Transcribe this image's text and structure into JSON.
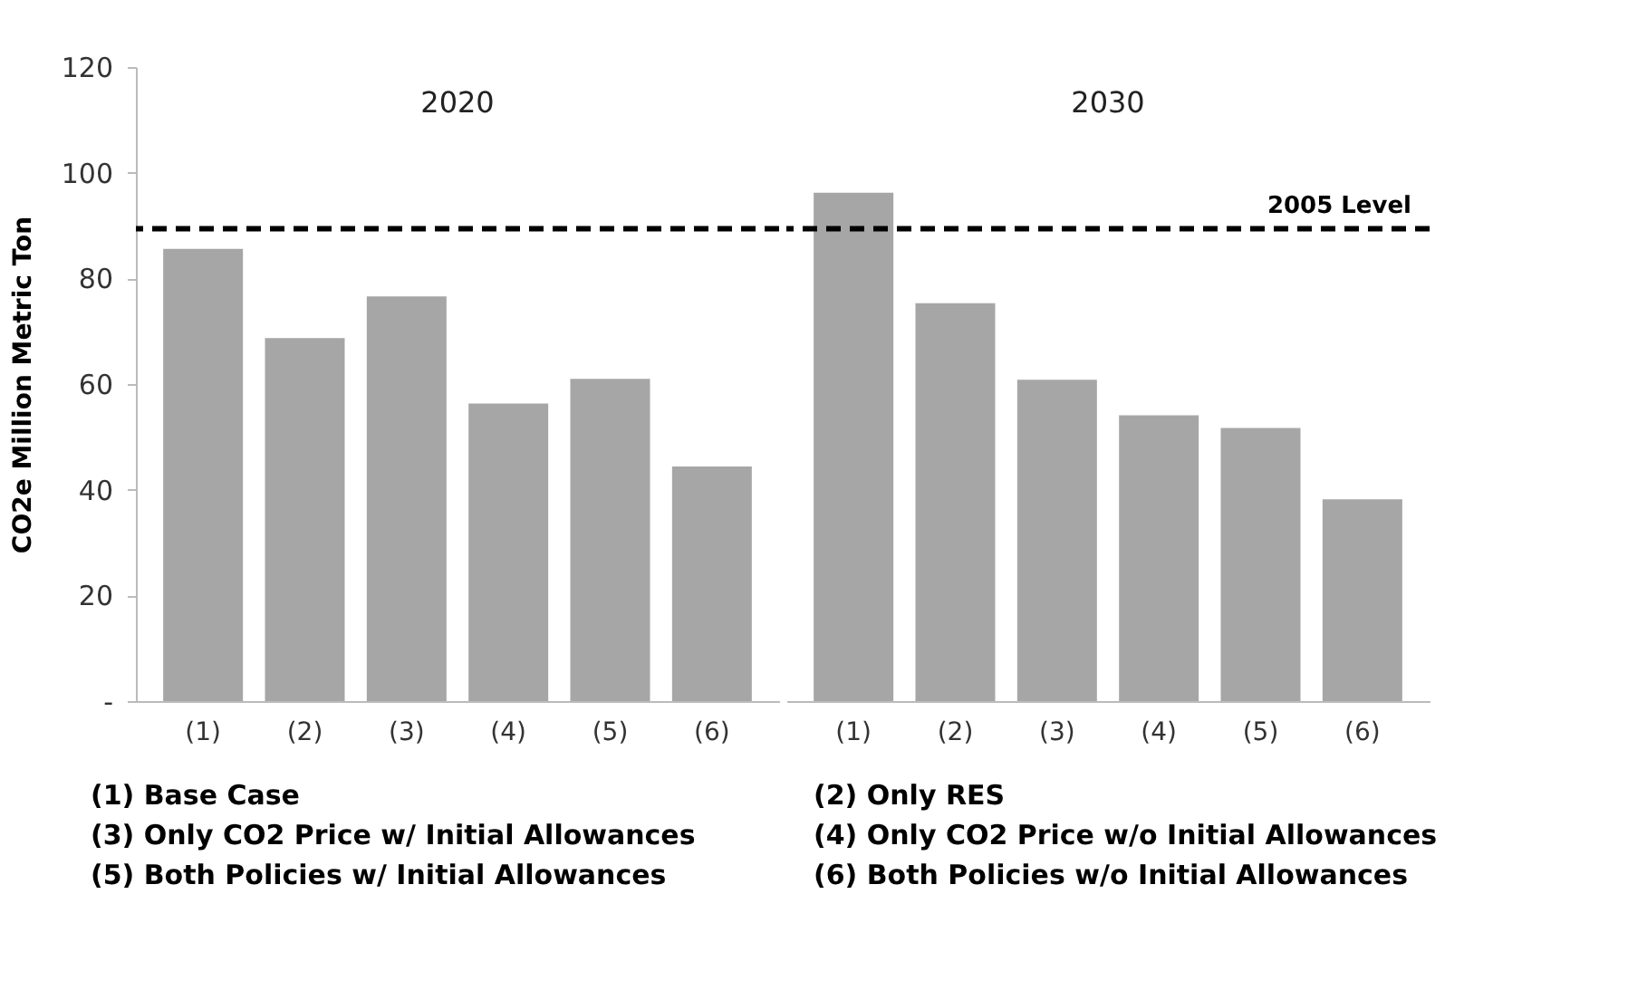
{
  "chart_data": [
    {
      "type": "bar",
      "title": "2020",
      "ylabel": "CO2e Million Metric Ton",
      "categories": [
        "(1)",
        "(2)",
        "(3)",
        "(4)",
        "(5)",
        "(6)"
      ],
      "values": [
        85.6,
        68.7,
        76.6,
        56.3,
        61.0,
        44.4
      ],
      "color": "#a6a6a6",
      "ylim": [
        0,
        120
      ],
      "yticks": [
        {
          "value": 0,
          "label": "-"
        },
        20,
        40,
        60,
        80,
        100,
        120
      ],
      "grid": false,
      "ref_lines": [
        {
          "axis": "y",
          "value": 89.4,
          "color": "#000000",
          "line_style": "dashed"
        }
      ],
      "annotations": [
        "(1) Base Case",
        "(3) Only CO2 Price w/ Initial Allowances",
        "(5) Both Policies w/ Initial Allowances"
      ]
    },
    {
      "type": "bar",
      "title": "2030",
      "categories": [
        "(1)",
        "(2)",
        "(3)",
        "(4)",
        "(5)",
        "(6)"
      ],
      "values": [
        96.2,
        75.3,
        60.8,
        54.1,
        51.7,
        38.2
      ],
      "color": "#a6a6a6",
      "ylim": [
        0,
        120
      ],
      "grid": false,
      "tick_labels": "x",
      "ref_lines": [
        {
          "axis": "y",
          "value": 89.4,
          "label": "2005 Level",
          "color": "#000000",
          "line_style": "dashed"
        }
      ],
      "annotations": [
        "(2) Only RES",
        "(4) Only CO2 Price w/o Initial Allowances",
        "(6) Both Policies w/o Initial Allowances"
      ]
    }
  ]
}
